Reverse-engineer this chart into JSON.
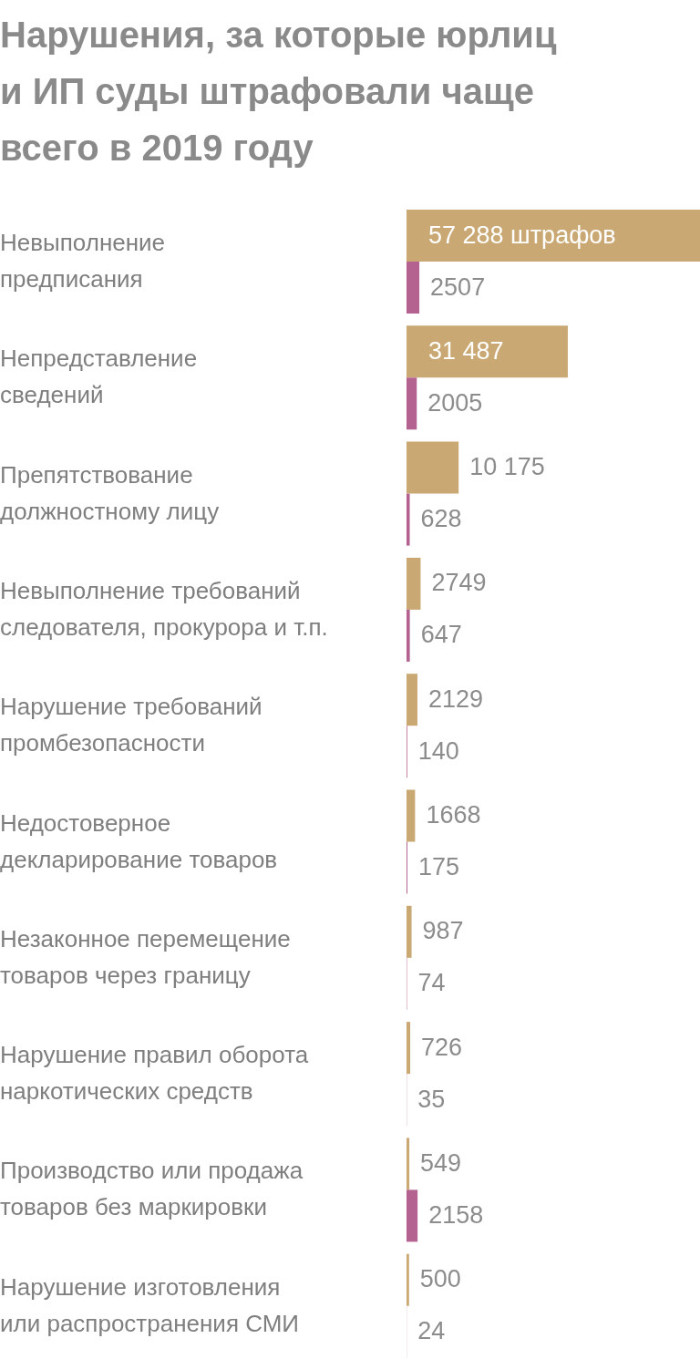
{
  "chart_data": {
    "type": "bar",
    "orientation": "horizontal",
    "title": "Нарушения, за которые юрлиц и ИП суды штрафовали чаще всего в 2019 году",
    "categories": [
      "Невыполнение предписания",
      "Непредставление сведений",
      "Препятствование должностному лицу",
      "Невыполнение требований следователя, прокурора и т.п.",
      "Нарушение требований промбезопасности",
      "Недостоверное декларирование товаров",
      "Незаконное перемещение товаров через границу",
      "Нарушение правил оборота наркотических средств",
      "Производство или продажа товаров без маркировки",
      "Нарушение изготовления или распространения СМИ"
    ],
    "series": [
      {
        "color": "#c9a873",
        "values": [
          57288,
          31487,
          10175,
          2749,
          2129,
          1668,
          987,
          726,
          549,
          500
        ],
        "value_labels": [
          "57 288 штрафов",
          "31 487",
          "10 175",
          "2749",
          "2129",
          "1668",
          "987",
          "726",
          "549",
          "500"
        ]
      },
      {
        "color": "#b4628f",
        "values": [
          2507,
          2005,
          628,
          647,
          140,
          175,
          74,
          35,
          2158,
          24
        ],
        "value_labels": [
          "2507",
          "2005",
          "628",
          "647",
          "140",
          "175",
          "74",
          "35",
          "2158",
          "24"
        ]
      }
    ]
  }
}
